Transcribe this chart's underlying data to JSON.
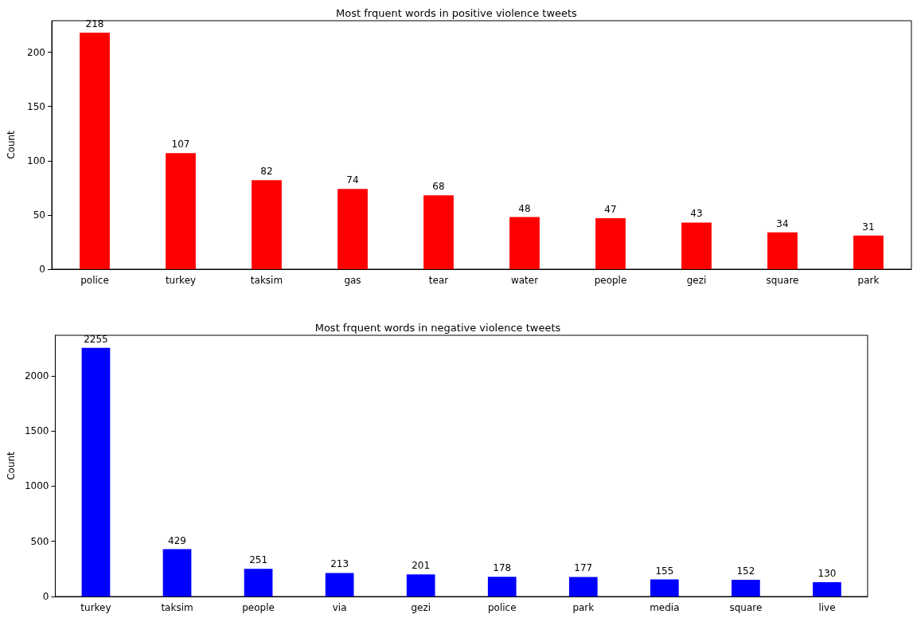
{
  "chart_data": [
    {
      "type": "bar",
      "title": "Most frquent words in positive violence tweets",
      "ylabel": "Count",
      "categories": [
        "police",
        "turkey",
        "taksim",
        "gas",
        "tear",
        "water",
        "people",
        "gezi",
        "square",
        "park"
      ],
      "values": [
        218,
        107,
        82,
        74,
        68,
        48,
        47,
        43,
        34,
        31
      ],
      "color": "#ff0000",
      "ylim": [
        0,
        229
      ],
      "yticks": [
        0,
        50,
        100,
        150,
        200
      ],
      "grid": false,
      "data_labels": true
    },
    {
      "type": "bar",
      "title": "Most frquent words in negative violence tweets",
      "ylabel": "Count",
      "categories": [
        "turkey",
        "taksim",
        "people",
        "via",
        "gezi",
        "police",
        "park",
        "media",
        "square",
        "live"
      ],
      "values": [
        2255,
        429,
        251,
        213,
        201,
        178,
        177,
        155,
        152,
        130
      ],
      "color": "#0000ff",
      "ylim": [
        0,
        2368
      ],
      "yticks": [
        0,
        500,
        1000,
        1500,
        2000
      ],
      "grid": false,
      "data_labels": true
    }
  ]
}
